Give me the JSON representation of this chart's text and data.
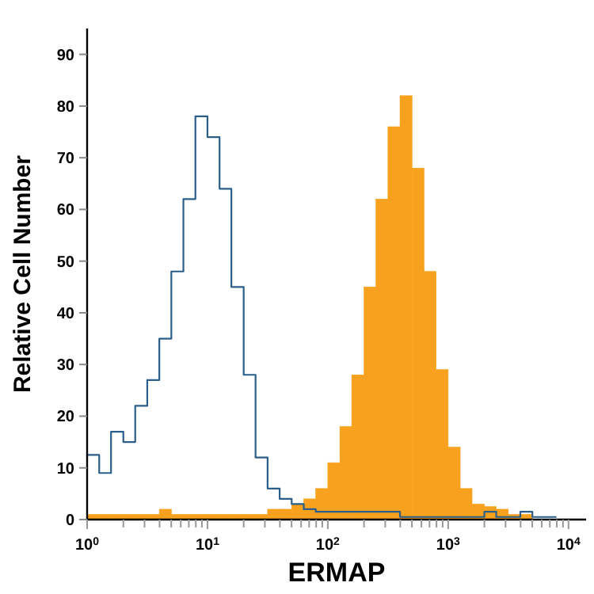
{
  "chart_data": {
    "type": "histogram",
    "xlabel": "ERMAP",
    "ylabel": "Relative Cell Number",
    "log": "x",
    "grid": false,
    "xlim": [
      1,
      14000
    ],
    "ylim": [
      0,
      95
    ],
    "yticks": [
      0,
      10,
      20,
      30,
      40,
      50,
      60,
      70,
      80,
      90
    ],
    "xticks": [
      {
        "value": 1,
        "label": "10$^{0}$"
      },
      {
        "value": 2,
        "label": null
      },
      {
        "value": 3,
        "label": null
      },
      {
        "value": 4,
        "label": null
      },
      {
        "value": 5,
        "label": null
      },
      {
        "value": 6,
        "label": null
      },
      {
        "value": 7,
        "label": null
      },
      {
        "value": 8,
        "label": null
      },
      {
        "value": 9,
        "label": null
      },
      {
        "value": 10,
        "label": "10$^{1}$"
      },
      {
        "value": 20,
        "label": null
      },
      {
        "value": 30,
        "label": null
      },
      {
        "value": 40,
        "label": null
      },
      {
        "value": 50,
        "label": null
      },
      {
        "value": 60,
        "label": null
      },
      {
        "value": 70,
        "label": null
      },
      {
        "value": 80,
        "label": null
      },
      {
        "value": 90,
        "label": null
      },
      {
        "value": 100,
        "label": "10$^{2}$"
      },
      {
        "value": 200,
        "label": null
      },
      {
        "value": 300,
        "label": null
      },
      {
        "value": 400,
        "label": null
      },
      {
        "value": 500,
        "label": null
      },
      {
        "value": 600,
        "label": null
      },
      {
        "value": 700,
        "label": null
      },
      {
        "value": 800,
        "label": null
      },
      {
        "value": 900,
        "label": null
      },
      {
        "value": 1000,
        "label": "10$^{3}$"
      },
      {
        "value": 2000,
        "label": null
      },
      {
        "value": 3000,
        "label": null
      },
      {
        "value": 4000,
        "label": null
      },
      {
        "value": 5000,
        "label": null
      },
      {
        "value": 6000,
        "label": null
      },
      {
        "value": 7000,
        "label": null
      },
      {
        "value": 8000,
        "label": null
      },
      {
        "value": 9000,
        "label": null
      },
      {
        "value": 10000,
        "label": "10$^{4}$"
      }
    ],
    "bins": [
      1,
      1.26,
      1.58,
      2,
      2.51,
      3.16,
      3.98,
      5.01,
      6.31,
      7.94,
      10,
      12.6,
      15.8,
      20,
      25.1,
      31.6,
      39.8,
      50.1,
      63.1,
      79.4,
      100,
      126,
      158,
      200,
      251,
      316,
      398,
      501,
      631,
      794,
      1000,
      1260,
      1580,
      2000,
      2510,
      3160,
      3980,
      5010
    ],
    "series": [
      {
        "color": "#f7a11e",
        "values": [
          1,
          1,
          1,
          1,
          1,
          1,
          2,
          1,
          1,
          1,
          1,
          1,
          1,
          1,
          1,
          2,
          2,
          3,
          4,
          6,
          11,
          18,
          28,
          45,
          62,
          76,
          82,
          68,
          48,
          29,
          14,
          6,
          3,
          2.5,
          2,
          1,
          1
        ]
      },
      {
        "type": "step",
        "color": "#2b5f8a",
        "x": [
          1,
          1.26,
          1.58,
          2,
          2.51,
          3.16,
          3.98,
          5.01,
          6.31,
          7.94,
          10,
          12.6,
          15.8,
          20,
          25.1,
          31.6,
          39.8,
          50.1,
          63.1,
          79.4,
          100,
          126,
          158,
          200,
          251,
          316,
          398,
          501,
          631,
          794,
          1000,
          1260,
          1580,
          2000,
          2510,
          3160,
          3980,
          5010,
          6310,
          7940
        ],
        "values": [
          12.5,
          9,
          17,
          15,
          22,
          27,
          35,
          48,
          62,
          78,
          74,
          64,
          45,
          28,
          12,
          6,
          4,
          3,
          2,
          1.5,
          1.5,
          1.5,
          1.5,
          1.5,
          1.5,
          1.5,
          0.5,
          0.5,
          0.5,
          0.5,
          0.5,
          0.5,
          0.5,
          1.5,
          0.5,
          0.5,
          1.5,
          0.5,
          0.5,
          0.5
        ]
      }
    ]
  }
}
